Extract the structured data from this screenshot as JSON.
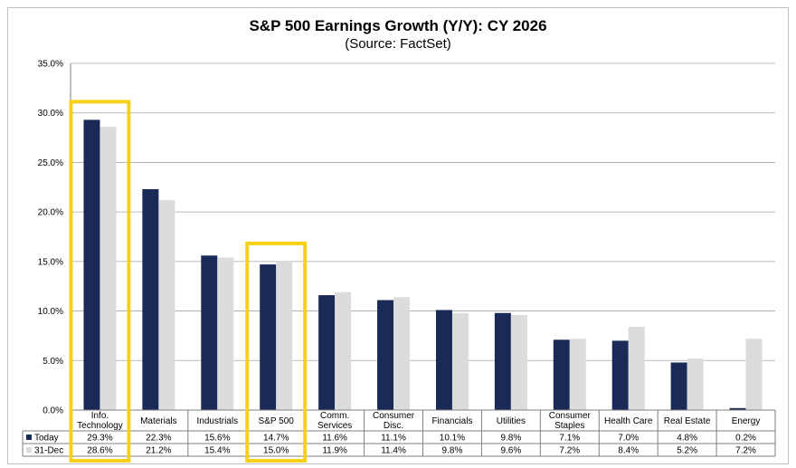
{
  "chart_data": {
    "type": "bar",
    "title": "S&P 500 Earnings Growth (Y/Y): CY 2026",
    "subtitle": "(Source: FactSet)",
    "categories": [
      [
        "Info.",
        "Technology"
      ],
      [
        "Materials"
      ],
      [
        "Industrials"
      ],
      [
        "S&P 500"
      ],
      [
        "Comm.",
        "Services"
      ],
      [
        "Consumer",
        "Disc."
      ],
      [
        "Financials"
      ],
      [
        "Utilities"
      ],
      [
        "Consumer",
        "Staples"
      ],
      [
        "Health Care"
      ],
      [
        "Real Estate"
      ],
      [
        "Energy"
      ]
    ],
    "series": [
      {
        "name": "Today",
        "color": "#1a2a57",
        "values": [
          29.3,
          22.3,
          15.6,
          14.7,
          11.6,
          11.1,
          10.1,
          9.8,
          7.1,
          7.0,
          4.8,
          0.2
        ],
        "labels": [
          "29.3%",
          "22.3%",
          "15.6%",
          "14.7%",
          "11.6%",
          "11.1%",
          "10.1%",
          "9.8%",
          "7.1%",
          "7.0%",
          "4.8%",
          "0.2%"
        ]
      },
      {
        "name": "31-Dec",
        "color": "#dcdcdc",
        "values": [
          28.6,
          21.2,
          15.4,
          15.0,
          11.9,
          11.4,
          9.8,
          9.6,
          7.2,
          8.4,
          5.2,
          7.2
        ],
        "labels": [
          "28.6%",
          "21.2%",
          "15.4%",
          "15.0%",
          "11.9%",
          "11.4%",
          "9.8%",
          "9.6%",
          "7.2%",
          "8.4%",
          "5.2%",
          "7.2%"
        ]
      }
    ],
    "ylim": [
      0,
      35
    ],
    "yticks": [
      "0.0%",
      "5.0%",
      "10.0%",
      "15.0%",
      "20.0%",
      "25.0%",
      "30.0%",
      "35.0%"
    ],
    "highlight_color": "#f7d117",
    "highlighted_categories": [
      0,
      3
    ],
    "grid": true,
    "legend": "data-table"
  }
}
